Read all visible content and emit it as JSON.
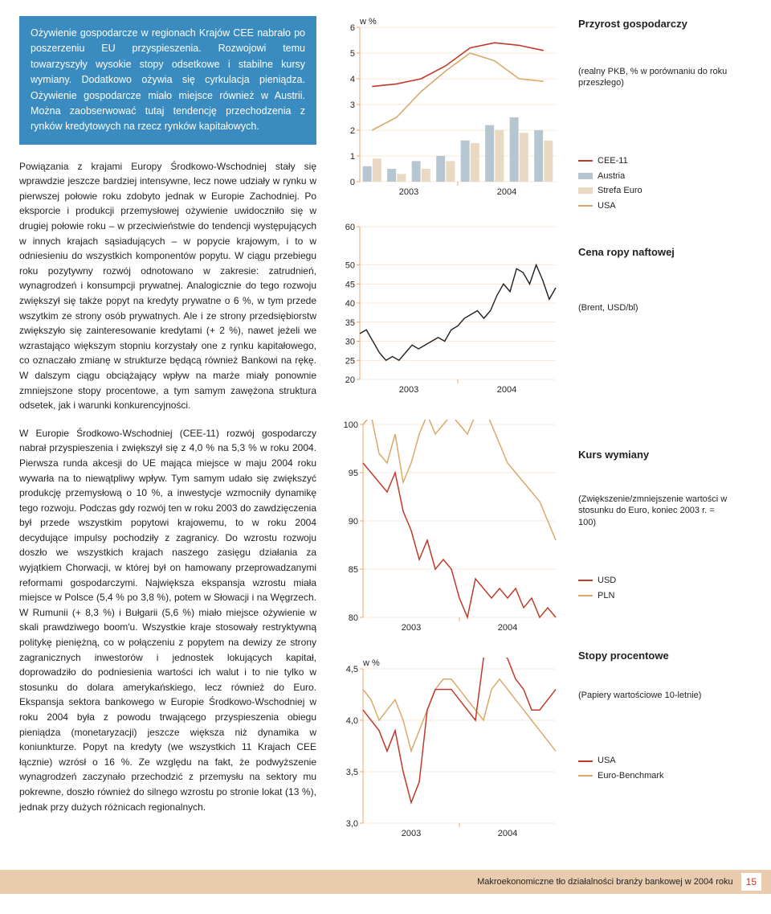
{
  "blue_box": "Ożywienie gospodarcze w regionach Krajów CEE nabrało po poszerzeniu EU przyspieszenia. Rozwojowi temu towarzyszyły wysokie stopy odsetkowe i stabilne kursy wymiany. Dodatkowo ożywia się cyrkulacja pieniądza. Ożywienie gospodarcze miało miejsce również w Austrii. Można zaobserwować tutaj tendencję przechodzenia z rynków kredytowych na rzecz rynków kapitałowych.",
  "para1": "Powiązania z krajami Europy Środkowo-Wschodniej stały się wprawdzie jeszcze bardziej intensywne, lecz nowe udziały w rynku w pierwszej połowie roku zdobyto jednak w Europie Zachodniej. Po eksporcie i produkcji przemysłowej ożywienie uwidoczniło się w drugiej połowie roku – w przeciwieństwie do tendencji występujących w innych krajach sąsiadujących – w popycie krajowym, i to w odniesieniu do wszystkich komponentów popytu. W ciągu przebiegu roku pozytywny rozwój odnotowano w zakresie: zatrudnień, wynagrodzeń i konsumpcji prywatnej. Analogicznie do tego rozwoju zwiększył się także popyt na kredyty prywatne o 6 %, w tym przede wszytkim ze strony osób prywatnych. Ale i ze strony przedsiębiorstw zwiększyło się zainteresowanie kredytami (+ 2 %), nawet jeżeli we wzrastająco większym stopniu korzystały one z rynku kapitałowego, co oznaczało zmianę w strukturze będącą również Bankowi na rękę. W dalszym ciągu obciążający wpływ na marże miały ponownie zmniejszone stopy procentowe, a tym samym zawężona struktura odsetek, jak i warunki konkurencyjności.",
  "para2": "W Europie Środkowo-Wschodniej (CEE-11) rozwój gospodarczy nabrał przyspieszenia i zwiększył się z 4,0 % na 5,3 % w roku 2004. Pierwsza runda akcesji do UE mająca miejsce w maju 2004 roku wywarła na to niewątpliwy wpływ. Tym samym udało się zwiększyć produkcję przemysłową o 10 %, a inwestycje wzmocniły dynamikę tego rozwoju. Podczas gdy rozwój ten w roku 2003 do zawdzięczenia był przede wszystkim popytowi krajowemu, to w roku 2004 decydujące impulsy pochodziły z zagranicy. Do wzrostu rozwoju doszło we wszystkich krajach naszego zasięgu działania za wyjątkiem Chorwacji, w której był on hamowany przeprowadzanymi reformami gospodarczymi. Największa ekspansja wzrostu miała miejsce w Polsce (5,4 % po 3,8 %), potem w Słowacji i na Węgrzech. W Rumunii (+ 8,3 %) i Bułgarii (5,6 %) miało miejsce ożywienie w skali prawdziwego boom'u. Wszystkie kraje stosowały restryktywną politykę pieniężną, co w połączeniu z popytem na dewizy ze strony zagranicznych inwestorów i jednostek lokujących kapitał, doprowadziło do podniesienia wartości ich walut i to nie tylko w stosunku do dolara amerykańskiego, lecz również do Euro. Ekspansja sektora bankowego w Europie Środkowo-Wschodniej w roku 2004 była z powodu trwającego przyspieszenia obiegu pieniądza (monetaryzacji) jeszcze większa niż dynamika w koniunkturze. Popyt na kredyty (we wszystkich 11 Krajach CEE łącznie) wzrósł o 16 %. Ze względu na fakt, że podwyższenie wynagrodzeń zaczynało przechodzić z przemysłu na sektory mu pokrewne, doszło również do silnego wzrostu po stronie lokat (13 %), jednak przy dużych różnicach regionalnych.",
  "chart1": {
    "type": "bar+line",
    "unit": "w %",
    "yticks": [
      0,
      1,
      2,
      3,
      4,
      5,
      6
    ],
    "ylim": [
      0,
      6
    ],
    "xcategories": [
      "2003",
      "2004"
    ],
    "bars_quarterly_austria": [
      0.6,
      0.5,
      0.8,
      1.0,
      1.6,
      2.2,
      2.5,
      2.0
    ],
    "bars_quarterly_euro": [
      0.9,
      0.3,
      0.5,
      0.8,
      1.5,
      2.0,
      1.9,
      1.6
    ],
    "line_cee11": [
      3.7,
      3.8,
      4.0,
      4.5,
      5.2,
      5.4,
      5.3,
      5.1
    ],
    "line_usa": [
      2.0,
      2.5,
      3.5,
      4.3,
      5.0,
      4.7,
      4.0,
      3.9
    ],
    "colors": {
      "austria_bar": "#b5c6d0",
      "euro_bar": "#ead9c2",
      "cee11_line": "#c0392b",
      "usa_line": "#d9a96a",
      "grid": "#f0d6b8",
      "ticks": "#e8a96b"
    }
  },
  "chart2": {
    "type": "line",
    "yticks": [
      20,
      25,
      30,
      35,
      40,
      45,
      50,
      60
    ],
    "ylim": [
      20,
      60
    ],
    "xcategories": [
      "2003",
      "2004"
    ],
    "line": [
      32,
      33,
      30,
      27,
      25,
      26,
      25,
      27,
      29,
      28,
      29,
      30,
      31,
      30,
      33,
      34,
      36,
      37,
      38,
      36,
      38,
      42,
      45,
      43,
      49,
      48,
      45,
      50,
      46,
      41,
      44
    ],
    "color": "#231f20",
    "grid": "#f0d6b8",
    "ticks": "#e8a96b"
  },
  "chart3": {
    "type": "line",
    "yticks": [
      80,
      85,
      90,
      95,
      100
    ],
    "ylim": [
      80,
      100
    ],
    "xcategories": [
      "2003",
      "2004"
    ],
    "usd": [
      96,
      95,
      94,
      93,
      95,
      91,
      89,
      86,
      88,
      85,
      86,
      85,
      82,
      80,
      84,
      83,
      82,
      83,
      82,
      83,
      81,
      82,
      80,
      81,
      80
    ],
    "pln": [
      100,
      101,
      97,
      96,
      99,
      94,
      96,
      99,
      101,
      99,
      100,
      101,
      100,
      99,
      101,
      102,
      100,
      98,
      96,
      95,
      94,
      93,
      92,
      90,
      88
    ],
    "colors": {
      "usd": "#c0392b",
      "pln": "#d9a96a"
    },
    "grid": "#f0d6b8",
    "ticks": "#e8a96b"
  },
  "chart4": {
    "type": "line",
    "unit": "w %",
    "yticks": [
      3.0,
      3.5,
      4.0,
      4.5
    ],
    "ylim": [
      3.0,
      4.5
    ],
    "xcategories": [
      "2003",
      "2004"
    ],
    "usa": [
      4.1,
      4.0,
      3.9,
      3.7,
      3.9,
      3.5,
      3.2,
      3.4,
      4.1,
      4.3,
      4.3,
      4.3,
      4.2,
      4.1,
      4.0,
      4.6,
      4.8,
      4.7,
      4.6,
      4.4,
      4.3,
      4.1,
      4.1,
      4.2,
      4.3
    ],
    "euro": [
      4.3,
      4.2,
      4.0,
      4.1,
      4.2,
      4.0,
      3.7,
      3.9,
      4.1,
      4.3,
      4.4,
      4.4,
      4.3,
      4.2,
      4.1,
      4.0,
      4.3,
      4.4,
      4.3,
      4.2,
      4.1,
      4.0,
      3.9,
      3.8,
      3.7
    ],
    "colors": {
      "usa": "#c0392b",
      "euro": "#d9a96a"
    },
    "grid": "#f0d6b8",
    "ticks": "#e8a96b"
  },
  "sidebar": {
    "s1": {
      "title": "Przyrost gospodarczy",
      "sub": "(realny PKB, % w porównaniu do roku przeszłego)",
      "legend": [
        {
          "label": "CEE-11",
          "type": "line",
          "color": "#c0392b"
        },
        {
          "label": "Austria",
          "type": "swatch",
          "color": "#b5c6d0"
        },
        {
          "label": "Strefa Euro",
          "type": "swatch",
          "color": "#ead9c2"
        },
        {
          "label": "USA",
          "type": "line",
          "color": "#d9a96a"
        }
      ]
    },
    "s2": {
      "title": "Cena ropy naftowej",
      "sub": "(Brent, USD/bl)"
    },
    "s3": {
      "title": "Kurs wymiany",
      "sub": "(Zwiększenie/zmniejszenie wartości w stosunku do Euro, koniec 2003 r. = 100)",
      "legend": [
        {
          "label": "USD",
          "type": "line",
          "color": "#c0392b"
        },
        {
          "label": "PLN",
          "type": "line",
          "color": "#d9a96a"
        }
      ]
    },
    "s4": {
      "title": "Stopy procentowe",
      "sub": "(Papiery wartościowe 10-letnie)",
      "legend": [
        {
          "label": "USA",
          "type": "line",
          "color": "#c0392b"
        },
        {
          "label": "Euro-Benchmark",
          "type": "line",
          "color": "#d9a96a"
        }
      ]
    }
  },
  "footer": {
    "text": "Makroekonomiczne tło działalności branży bankowej w 2004 roku",
    "page": "15"
  }
}
